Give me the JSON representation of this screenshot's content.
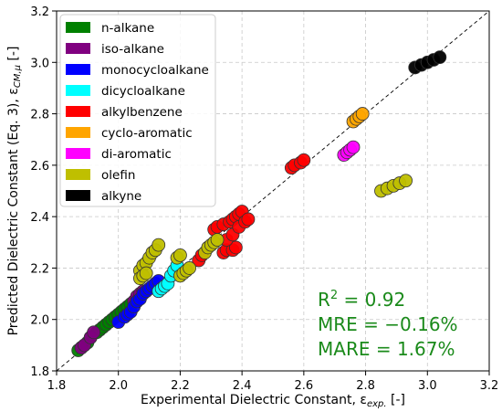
{
  "chart_data": {
    "type": "scatter",
    "xlabel": "Experimental Dielectric Constant, ε",
    "xlabel_sub": "exp.",
    "xlabel_unit": " [-]",
    "ylabel": "Predicted Dielectric Constant (Eq. 3), ε",
    "ylabel_sub": "CM,μ",
    "ylabel_unit": " [-]",
    "xlim": [
      1.8,
      3.2
    ],
    "ylim": [
      1.8,
      3.2
    ],
    "xticks": [
      "1.8",
      "2.0",
      "2.2",
      "2.4",
      "2.6",
      "2.8",
      "3.0",
      "3.2"
    ],
    "yticks": [
      "1.8",
      "2.0",
      "2.2",
      "2.4",
      "2.6",
      "2.8",
      "3.0",
      "3.2"
    ],
    "grid": true,
    "legend_position": "top-left",
    "parity_line": true,
    "annotations": {
      "r2_label": "R",
      "r2_sup": "2",
      "r2_value": " = 0.92",
      "mre": "MRE = −0.16%",
      "mare": "MARE = 1.67%",
      "color": "#1a8a1a"
    },
    "series": [
      {
        "name": "n-alkane",
        "color": "#008000",
        "points": [
          [
            1.87,
            1.88
          ],
          [
            1.88,
            1.89
          ],
          [
            1.9,
            1.91
          ],
          [
            1.91,
            1.93
          ],
          [
            1.93,
            1.95
          ],
          [
            1.94,
            1.96
          ],
          [
            1.95,
            1.97
          ],
          [
            1.96,
            1.98
          ],
          [
            1.97,
            1.99
          ],
          [
            1.98,
            2.0
          ],
          [
            1.99,
            2.01
          ],
          [
            2.0,
            2.02
          ],
          [
            2.01,
            2.03
          ],
          [
            2.02,
            2.04
          ],
          [
            2.03,
            2.05
          ],
          [
            2.04,
            2.06
          ]
        ]
      },
      {
        "name": "iso-alkane",
        "color": "#800080",
        "points": [
          [
            1.88,
            1.89
          ],
          [
            1.89,
            1.9
          ],
          [
            1.91,
            1.93
          ],
          [
            1.92,
            1.95
          ],
          [
            2.05,
            2.07
          ],
          [
            2.06,
            2.09
          ],
          [
            2.07,
            2.1
          ],
          [
            2.08,
            2.11
          ]
        ]
      },
      {
        "name": "monocycloalkane",
        "color": "#0000ff",
        "points": [
          [
            2.0,
            1.99
          ],
          [
            2.02,
            2.01
          ],
          [
            2.03,
            2.02
          ],
          [
            2.04,
            2.03
          ],
          [
            2.05,
            2.05
          ],
          [
            2.06,
            2.07
          ],
          [
            2.07,
            2.08
          ],
          [
            2.08,
            2.1
          ],
          [
            2.09,
            2.11
          ],
          [
            2.1,
            2.12
          ],
          [
            2.11,
            2.13
          ],
          [
            2.12,
            2.14
          ],
          [
            2.13,
            2.15
          ]
        ]
      },
      {
        "name": "dicycloalkane",
        "color": "#00ffff",
        "points": [
          [
            2.13,
            2.11
          ],
          [
            2.14,
            2.12
          ],
          [
            2.15,
            2.13
          ],
          [
            2.16,
            2.14
          ],
          [
            2.17,
            2.17
          ],
          [
            2.18,
            2.19
          ],
          [
            2.19,
            2.21
          ]
        ]
      },
      {
        "name": "alkylbenzene",
        "color": "#ff0000",
        "points": [
          [
            2.26,
            2.23
          ],
          [
            2.27,
            2.25
          ],
          [
            2.31,
            2.35
          ],
          [
            2.32,
            2.36
          ],
          [
            2.34,
            2.37
          ],
          [
            2.36,
            2.38
          ],
          [
            2.37,
            2.39
          ],
          [
            2.38,
            2.4
          ],
          [
            2.39,
            2.41
          ],
          [
            2.4,
            2.42
          ],
          [
            2.34,
            2.26
          ],
          [
            2.35,
            2.27
          ],
          [
            2.37,
            2.27
          ],
          [
            2.38,
            2.28
          ],
          [
            2.35,
            2.31
          ],
          [
            2.37,
            2.33
          ],
          [
            2.39,
            2.36
          ],
          [
            2.41,
            2.38
          ],
          [
            2.42,
            2.39
          ],
          [
            2.56,
            2.59
          ],
          [
            2.57,
            2.6
          ],
          [
            2.59,
            2.61
          ],
          [
            2.6,
            2.62
          ]
        ]
      },
      {
        "name": "cyclo-aromatic",
        "color": "#ffa500",
        "points": [
          [
            2.76,
            2.77
          ],
          [
            2.77,
            2.78
          ],
          [
            2.78,
            2.79
          ],
          [
            2.79,
            2.8
          ]
        ]
      },
      {
        "name": "di-aromatic",
        "color": "#ff00ff",
        "points": [
          [
            2.73,
            2.64
          ],
          [
            2.74,
            2.65
          ],
          [
            2.75,
            2.66
          ],
          [
            2.76,
            2.67
          ]
        ]
      },
      {
        "name": "olefin",
        "color": "#bfbf00",
        "points": [
          [
            2.07,
            2.19
          ],
          [
            2.08,
            2.21
          ],
          [
            2.09,
            2.22
          ],
          [
            2.1,
            2.24
          ],
          [
            2.11,
            2.26
          ],
          [
            2.12,
            2.27
          ],
          [
            2.13,
            2.29
          ],
          [
            2.07,
            2.16
          ],
          [
            2.08,
            2.17
          ],
          [
            2.09,
            2.18
          ],
          [
            2.2,
            2.17
          ],
          [
            2.21,
            2.18
          ],
          [
            2.22,
            2.19
          ],
          [
            2.23,
            2.2
          ],
          [
            2.19,
            2.24
          ],
          [
            2.2,
            2.25
          ],
          [
            2.28,
            2.26
          ],
          [
            2.29,
            2.28
          ],
          [
            2.3,
            2.29
          ],
          [
            2.31,
            2.3
          ],
          [
            2.32,
            2.31
          ],
          [
            2.85,
            2.5
          ],
          [
            2.87,
            2.51
          ],
          [
            2.89,
            2.52
          ],
          [
            2.91,
            2.53
          ],
          [
            2.93,
            2.54
          ]
        ]
      },
      {
        "name": "alkyne",
        "color": "#000000",
        "points": [
          [
            2.96,
            2.98
          ],
          [
            2.98,
            2.99
          ],
          [
            3.0,
            3.0
          ],
          [
            3.02,
            3.01
          ],
          [
            3.04,
            3.02
          ]
        ]
      }
    ]
  }
}
